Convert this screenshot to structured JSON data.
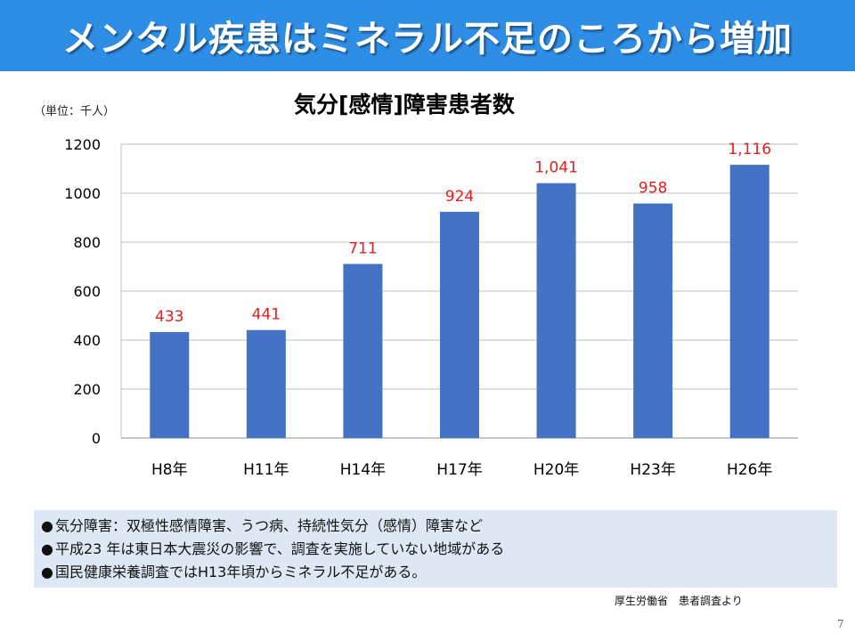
{
  "title": "メンタル疾患はミネラル不足のころから増加",
  "unit_label": "（単位：千人）",
  "colors": {
    "title_bar": "#2e8ee6",
    "bar": "#4472c4",
    "data_label": "#e02020",
    "notes_background": "#dde8f4"
  },
  "chart_data": {
    "type": "bar",
    "title": "気分[感情]障害患者数",
    "categories": [
      "H8年",
      "H11年",
      "H14年",
      "H17年",
      "H20年",
      "H23年",
      "H26年"
    ],
    "values": [
      433,
      441,
      711,
      924,
      1041,
      958,
      1116
    ],
    "data_labels": [
      "433",
      "441",
      "711",
      "924",
      "1,041",
      "958",
      "1,116"
    ],
    "ylim": [
      0,
      1200
    ],
    "yticks": [
      0,
      200,
      400,
      600,
      800,
      1000,
      1200
    ],
    "grid": true,
    "legend": "none"
  },
  "notes": [
    "気分障害：双極性感情障害、うつ病、持続性気分（感情）障害など",
    "平成23 年は東日本大震災の影響で、調査を実施していない地域がある",
    "国民健康栄養調査ではH13年頃からミネラル不足がある。"
  ],
  "note_bullet": "●",
  "source": "厚生労働省　患者調査より",
  "page_number": "7"
}
